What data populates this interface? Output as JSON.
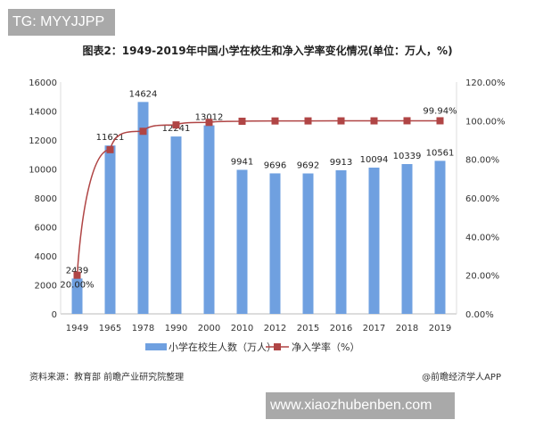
{
  "watermark_top": "TG: MYYJJPP",
  "watermark_bottom": "www.xiaozhubenben.com",
  "source": "资料来源：教育部 前瞻产业研究院整理",
  "credit": "@前瞻经济学人APP",
  "chart_data": {
    "type": "bar+line",
    "title": "图表2：1949-2019年中国小学在校生和净入学率变化情况(单位：万人，%)",
    "categories": [
      "1949",
      "1965",
      "1978",
      "1990",
      "2000",
      "2010",
      "2012",
      "2015",
      "2016",
      "2017",
      "2018",
      "2019"
    ],
    "series": [
      {
        "name": "小学在校生人数（万人）",
        "type": "bar",
        "axis": "left",
        "color": "#6fa0e0",
        "values": [
          2439,
          11621,
          14624,
          12241,
          13012,
          9941,
          9696,
          9692,
          9913,
          10094,
          10339,
          10561
        ]
      },
      {
        "name": "净入学率（%）",
        "type": "line",
        "axis": "right",
        "color": "#b04545",
        "values": [
          20.0,
          85.0,
          94.5,
          97.8,
          99.1,
          99.7,
          99.85,
          99.88,
          99.9,
          99.91,
          99.95,
          99.94
        ],
        "labels": {
          "0": "20.00%",
          "11": "99.94%"
        }
      }
    ],
    "ylim_left": [
      0,
      16000
    ],
    "yticks_left": [
      "0",
      "2000",
      "4000",
      "6000",
      "8000",
      "10000",
      "12000",
      "14000",
      "16000"
    ],
    "ylim_right": [
      0,
      120
    ],
    "yticks_right": [
      "0.00%",
      "20.00%",
      "40.00%",
      "60.00%",
      "80.00%",
      "100.00%",
      "120.00%"
    ],
    "grid": false,
    "legend": "bottom"
  }
}
